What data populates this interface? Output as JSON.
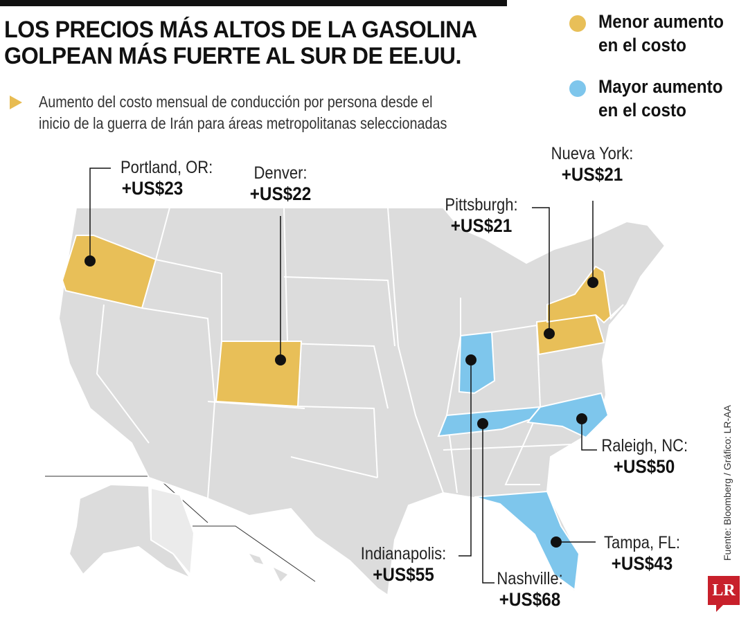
{
  "title_lines": [
    "LOS PRECIOS MÁS ALTOS DE LA GASOLINA",
    "GOLPEAN MÁS FUERTE AL SUR DE EE.UU."
  ],
  "subtitle_lines": [
    "Aumento del costo mensual de conducción por persona desde el",
    "inicio de la guerra de Irán para áreas metropolitanas seleccionadas"
  ],
  "legend": [
    {
      "lines": [
        "Menor aumento",
        "en el costo"
      ],
      "color": "#e8bf58"
    },
    {
      "lines": [
        "Mayor aumento",
        "en el costo"
      ],
      "color": "#7ec6ec"
    }
  ],
  "cities": [
    {
      "name": "Portland, OR:",
      "value": "+US$23",
      "group": "low"
    },
    {
      "name": "Denver:",
      "value": "+US$22",
      "group": "low"
    },
    {
      "name": "Pittsburgh:",
      "value": "+US$21",
      "group": "low"
    },
    {
      "name": "Nueva York:",
      "value": "+US$21",
      "group": "low"
    },
    {
      "name": "Raleigh, NC:",
      "value": "+US$50",
      "group": "high"
    },
    {
      "name": "Tampa, FL:",
      "value": "+US$43",
      "group": "high"
    },
    {
      "name": "Indianapolis:",
      "value": "+US$55",
      "group": "high"
    },
    {
      "name": "Nashville:",
      "value": "+US$68",
      "group": "high"
    }
  ],
  "colors": {
    "low": "#e8bf58",
    "high": "#7ec6ec",
    "land": "#dcdcdc",
    "border": "#ffffff"
  },
  "source": "Fuente: Bloomberg / Gráfico: LR-AA",
  "logo": "LR"
}
